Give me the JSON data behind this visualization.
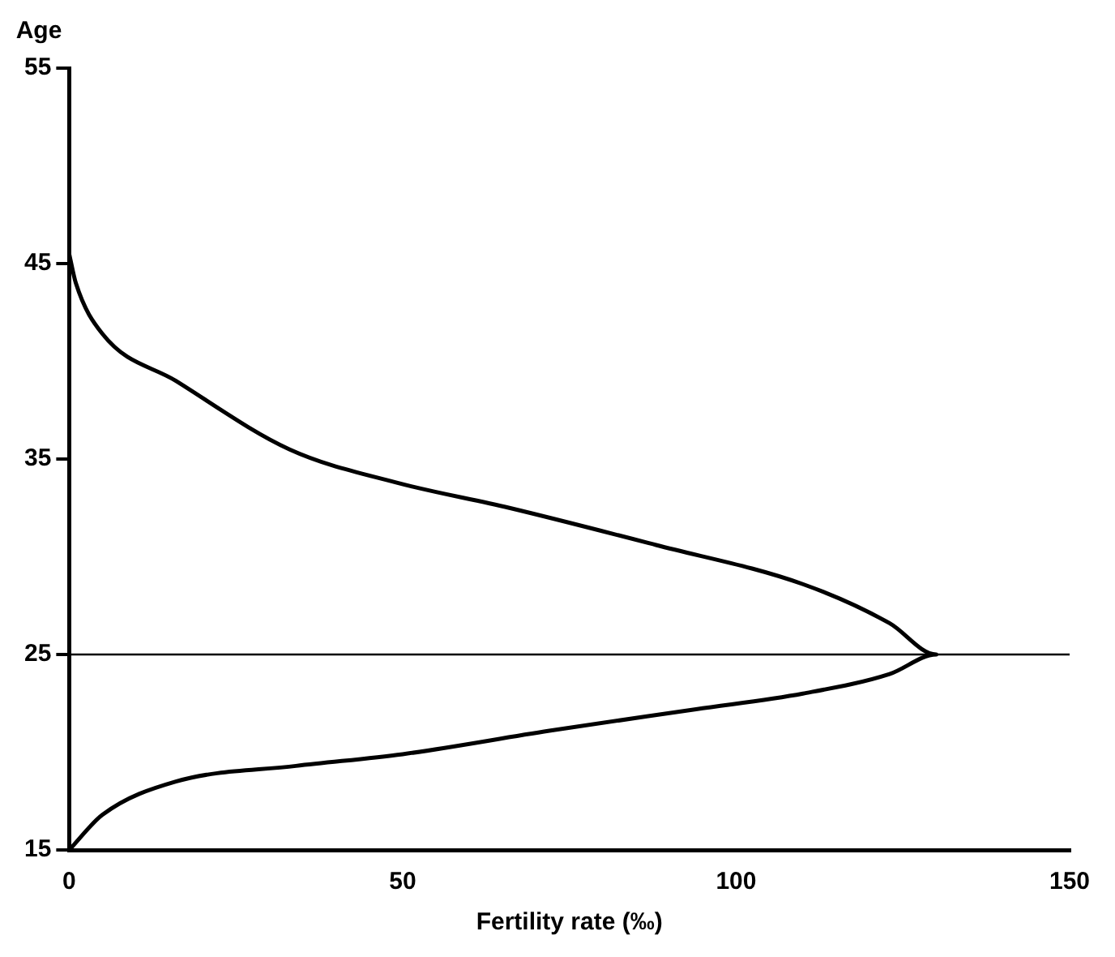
{
  "chart_data": {
    "type": "line",
    "xlabel": "Fertility rate (‰)",
    "ylabel": "Age",
    "series": [
      {
        "color": "#000000",
        "x": [
          0,
          5,
          16,
          34,
          50,
          72,
          94,
          110,
          123,
          130,
          123,
          110,
          88,
          66,
          49,
          33,
          16,
          5,
          1,
          0
        ],
        "values": [
          15,
          16.8,
          18.5,
          19.3,
          19.9,
          21.1,
          22.2,
          23,
          24,
          25,
          26.6,
          28.6,
          30.6,
          32.5,
          33.8,
          35.5,
          39,
          41.4,
          44,
          45.5
        ]
      }
    ],
    "xlim": [
      0,
      150
    ],
    "xticks": [
      0,
      50,
      100,
      150
    ],
    "ylim": [
      15,
      55
    ],
    "yticks": [
      15,
      25,
      35,
      45,
      55
    ],
    "ref_lines": [
      {
        "axis": "y",
        "value": 25,
        "color": "#000000"
      }
    ],
    "grid": false,
    "legend": false,
    "marker": "none",
    "line_style": "solid"
  }
}
